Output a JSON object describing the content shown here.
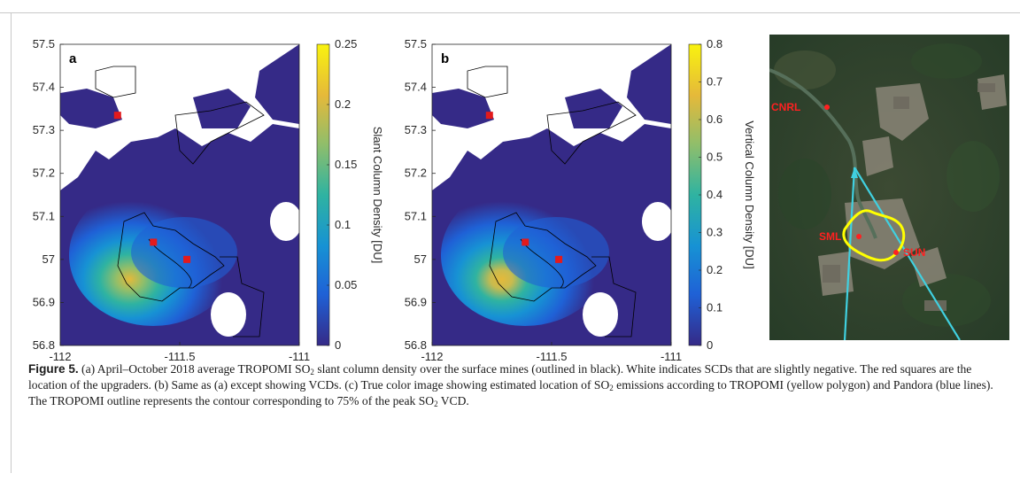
{
  "figure": {
    "panels": [
      {
        "letter": "a",
        "colorbar_label": "Slant Column Density [DU]",
        "colorbar_ticks": [
          "0",
          "0.05",
          "0.1",
          "0.15",
          "0.2",
          "0.25"
        ],
        "colorbar_range": [
          0,
          0.25
        ]
      },
      {
        "letter": "b",
        "colorbar_label": "Vertical Column Density [DU]",
        "colorbar_ticks": [
          "0",
          "0.1",
          "0.2",
          "0.3",
          "0.4",
          "0.5",
          "0.6",
          "0.7",
          "0.8"
        ],
        "colorbar_range": [
          0,
          0.8
        ]
      }
    ],
    "x_ticks": [
      "-112",
      "-111.5",
      "-111"
    ],
    "y_ticks": [
      "57.5",
      "57.4",
      "57.3",
      "57.2",
      "57.1",
      "57",
      "56.9",
      "56.8"
    ],
    "x_range": [
      -112,
      -111
    ],
    "y_range": [
      56.8,
      57.5
    ],
    "upgraders": [
      {
        "lon": -111.76,
        "lat": 57.335
      },
      {
        "lon": -111.61,
        "lat": 57.04
      },
      {
        "lon": -111.47,
        "lat": 57.0
      }
    ],
    "colormap": [
      "#352a87",
      "#1f61d6",
      "#1792d4",
      "#2fb3a1",
      "#91be6a",
      "#e5b93a",
      "#f9f30f"
    ],
    "marker_color": "#e31a1c"
  },
  "photo": {
    "labels": [
      "CNRL",
      "SML",
      "SUN"
    ],
    "tropomi_outline_color": "#ffff00",
    "pandora_line_color": "#40d0e0"
  },
  "caption": {
    "label": "Figure 5.",
    "t1": " (a) April–October 2018 average TROPOMI SO",
    "t2": " slant column density over the surface mines (outlined in black). White indicates SCDs that are slightly negative. The red squares are the location of the upgraders. (b) Same as (a) except showing VCDs. (c) True color image showing estimated location of SO",
    "t3": " emissions according to TROPOMI (yellow polygon) and Pandora (blue lines). The TROPOMI outline represents the contour corresponding to 75% of the peak SO",
    "t4": " VCD.",
    "sub": "2"
  }
}
